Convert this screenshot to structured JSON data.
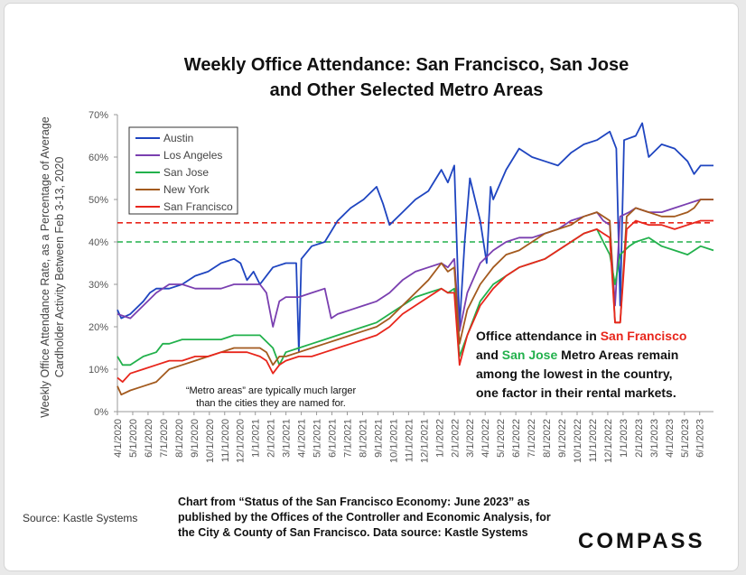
{
  "chart_data": {
    "type": "line",
    "title_line1": "Weekly Office Attendance: San Francisco, San Jose",
    "title_line2": "and Other Selected Metro Areas",
    "ylabel_line1": "Weekly Office Attendance  Rate, as a Percentage of Average",
    "ylabel_line2": "Cardholder Activity Between Feb 3-13, 2020",
    "ylim": [
      0,
      70
    ],
    "yticks": [
      "0%",
      "10%",
      "20%",
      "30%",
      "40%",
      "50%",
      "60%",
      "70%"
    ],
    "x_start": "4/1/2020",
    "x_end": "6/30/2023",
    "xticks": [
      "4/1/2020",
      "5/1/2020",
      "6/1/2020",
      "7/1/2020",
      "8/1/2020",
      "9/1/2020",
      "10/1/2020",
      "11/1/2020",
      "12/1/2020",
      "1/1/2021",
      "2/1/2021",
      "3/1/2021",
      "4/1/2021",
      "5/1/2021",
      "6/1/2021",
      "7/1/2021",
      "8/1/2021",
      "9/1/2021",
      "10/1/2021",
      "11/1/2021",
      "12/1/2021",
      "1/1/2022",
      "2/1/2022",
      "3/1/2022",
      "4/1/2022",
      "5/1/2022",
      "6/1/2022",
      "7/1/2022",
      "8/1/2022",
      "9/1/2022",
      "10/1/2022",
      "11/1/2022",
      "12/1/2022",
      "1/1/2023",
      "2/1/2023",
      "3/1/2023",
      "4/1/2023",
      "5/1/2023",
      "6/1/2023"
    ],
    "x_unit": "months since 4/1/2020",
    "series": [
      {
        "name": "Austin",
        "color": "#1f45c0",
        "points": [
          [
            0,
            24
          ],
          [
            0.3,
            22
          ],
          [
            1,
            23
          ],
          [
            2,
            26
          ],
          [
            2.5,
            28
          ],
          [
            3,
            29
          ],
          [
            4,
            29
          ],
          [
            5,
            30
          ],
          [
            6,
            32
          ],
          [
            7,
            33
          ],
          [
            8,
            35
          ],
          [
            9,
            36
          ],
          [
            9.5,
            35
          ],
          [
            10,
            31
          ],
          [
            10.5,
            33
          ],
          [
            11,
            30
          ],
          [
            11.5,
            32
          ],
          [
            12,
            34
          ],
          [
            13,
            35
          ],
          [
            13.8,
            35
          ],
          [
            14,
            14
          ],
          [
            14.2,
            36
          ],
          [
            15,
            39
          ],
          [
            16,
            40
          ],
          [
            17,
            45
          ],
          [
            18,
            48
          ],
          [
            19,
            50
          ],
          [
            20,
            53
          ],
          [
            20.5,
            49
          ],
          [
            21,
            44
          ],
          [
            22,
            47
          ],
          [
            23,
            50
          ],
          [
            24,
            52
          ],
          [
            25,
            57
          ],
          [
            25.5,
            54
          ],
          [
            26,
            58
          ],
          [
            26.4,
            20
          ],
          [
            26.8,
            40
          ],
          [
            27.2,
            55
          ],
          [
            28,
            45
          ],
          [
            28.5,
            35
          ],
          [
            28.8,
            53
          ],
          [
            29,
            50
          ],
          [
            30,
            57
          ],
          [
            31,
            62
          ],
          [
            32,
            60
          ],
          [
            33,
            59
          ],
          [
            34,
            58
          ],
          [
            35,
            61
          ],
          [
            36,
            63
          ],
          [
            37,
            64
          ],
          [
            38,
            66
          ],
          [
            38.5,
            62
          ],
          [
            38.8,
            25
          ],
          [
            39.1,
            64
          ],
          [
            40,
            65
          ],
          [
            40.5,
            68
          ],
          [
            41,
            60
          ],
          [
            42,
            63
          ],
          [
            43,
            62
          ],
          [
            44,
            59
          ],
          [
            44.5,
            56
          ],
          [
            45,
            58
          ],
          [
            46,
            58
          ]
        ]
      },
      {
        "name": "Los Angeles",
        "color": "#7a3fb0",
        "points": [
          [
            0,
            23
          ],
          [
            1,
            22
          ],
          [
            2,
            25
          ],
          [
            3,
            28
          ],
          [
            4,
            30
          ],
          [
            5,
            30
          ],
          [
            6,
            29
          ],
          [
            7,
            29
          ],
          [
            8,
            29
          ],
          [
            9,
            30
          ],
          [
            10,
            30
          ],
          [
            11,
            30
          ],
          [
            11.5,
            28
          ],
          [
            12,
            20
          ],
          [
            12.5,
            26
          ],
          [
            13,
            27
          ],
          [
            14,
            27
          ],
          [
            15,
            28
          ],
          [
            16,
            29
          ],
          [
            16.5,
            22
          ],
          [
            17,
            23
          ],
          [
            18,
            24
          ],
          [
            19,
            25
          ],
          [
            20,
            26
          ],
          [
            21,
            28
          ],
          [
            22,
            31
          ],
          [
            23,
            33
          ],
          [
            24,
            34
          ],
          [
            25,
            35
          ],
          [
            25.5,
            34
          ],
          [
            26,
            36
          ],
          [
            26.4,
            19
          ],
          [
            27,
            28
          ],
          [
            28,
            35
          ],
          [
            29,
            38
          ],
          [
            30,
            40
          ],
          [
            31,
            41
          ],
          [
            32,
            41
          ],
          [
            33,
            42
          ],
          [
            34,
            43
          ],
          [
            35,
            45
          ],
          [
            36,
            46
          ],
          [
            37,
            47
          ],
          [
            37.5,
            45
          ],
          [
            38,
            44
          ],
          [
            38.4,
            25
          ],
          [
            38.8,
            46
          ],
          [
            39.5,
            47
          ],
          [
            40,
            48
          ],
          [
            41,
            47
          ],
          [
            42,
            47
          ],
          [
            43,
            48
          ],
          [
            44,
            49
          ],
          [
            45,
            50
          ],
          [
            46,
            50
          ]
        ]
      },
      {
        "name": "San Jose",
        "color": "#22b14c",
        "points": [
          [
            0,
            13
          ],
          [
            0.4,
            11
          ],
          [
            1,
            11
          ],
          [
            2,
            13
          ],
          [
            3,
            14
          ],
          [
            3.5,
            16
          ],
          [
            4,
            16
          ],
          [
            5,
            17
          ],
          [
            6,
            17
          ],
          [
            7,
            17
          ],
          [
            8,
            17
          ],
          [
            9,
            18
          ],
          [
            10,
            18
          ],
          [
            11,
            18
          ],
          [
            12,
            15
          ],
          [
            12.5,
            11
          ],
          [
            13,
            14
          ],
          [
            14,
            15
          ],
          [
            15,
            16
          ],
          [
            16,
            17
          ],
          [
            17,
            18
          ],
          [
            18,
            19
          ],
          [
            19,
            20
          ],
          [
            20,
            21
          ],
          [
            21,
            23
          ],
          [
            22,
            25
          ],
          [
            23,
            27
          ],
          [
            24,
            28
          ],
          [
            25,
            29
          ],
          [
            25.5,
            28
          ],
          [
            26,
            29
          ],
          [
            26.4,
            13
          ],
          [
            27,
            18
          ],
          [
            28,
            26
          ],
          [
            29,
            30
          ],
          [
            30,
            32
          ],
          [
            31,
            34
          ],
          [
            32,
            35
          ],
          [
            33,
            36
          ],
          [
            34,
            38
          ],
          [
            35,
            40
          ],
          [
            36,
            42
          ],
          [
            37,
            43
          ],
          [
            37.5,
            40
          ],
          [
            38,
            37
          ],
          [
            38.4,
            30
          ],
          [
            38.8,
            37
          ],
          [
            39.5,
            39
          ],
          [
            40,
            40
          ],
          [
            41,
            41
          ],
          [
            42,
            39
          ],
          [
            43,
            38
          ],
          [
            44,
            37
          ],
          [
            45,
            39
          ],
          [
            46,
            38
          ]
        ]
      },
      {
        "name": "New York",
        "color": "#a35a1e",
        "points": [
          [
            0,
            6
          ],
          [
            0.3,
            4
          ],
          [
            1,
            5
          ],
          [
            2,
            6
          ],
          [
            3,
            7
          ],
          [
            4,
            10
          ],
          [
            5,
            11
          ],
          [
            6,
            12
          ],
          [
            7,
            13
          ],
          [
            8,
            14
          ],
          [
            9,
            15
          ],
          [
            10,
            15
          ],
          [
            11,
            15
          ],
          [
            11.5,
            14
          ],
          [
            12,
            11
          ],
          [
            12.5,
            13
          ],
          [
            13,
            13
          ],
          [
            14,
            14
          ],
          [
            15,
            15
          ],
          [
            16,
            16
          ],
          [
            17,
            17
          ],
          [
            18,
            18
          ],
          [
            19,
            19
          ],
          [
            20,
            20
          ],
          [
            21,
            22
          ],
          [
            22,
            25
          ],
          [
            23,
            28
          ],
          [
            24,
            31
          ],
          [
            25,
            35
          ],
          [
            25.5,
            33
          ],
          [
            26,
            34
          ],
          [
            26.4,
            16
          ],
          [
            27,
            24
          ],
          [
            28,
            30
          ],
          [
            29,
            34
          ],
          [
            30,
            37
          ],
          [
            31,
            38
          ],
          [
            32,
            40
          ],
          [
            33,
            42
          ],
          [
            34,
            43
          ],
          [
            35,
            44
          ],
          [
            36,
            46
          ],
          [
            37,
            47
          ],
          [
            37.5,
            46
          ],
          [
            38,
            45
          ],
          [
            38.4,
            21
          ],
          [
            38.8,
            21
          ],
          [
            39.3,
            46
          ],
          [
            40,
            48
          ],
          [
            41,
            47
          ],
          [
            42,
            46
          ],
          [
            43,
            46
          ],
          [
            44,
            47
          ],
          [
            44.5,
            48
          ],
          [
            45,
            50
          ],
          [
            46,
            50
          ]
        ]
      },
      {
        "name": "San Francisco",
        "color": "#e8261c",
        "points": [
          [
            0,
            8
          ],
          [
            0.4,
            7
          ],
          [
            1,
            9
          ],
          [
            2,
            10
          ],
          [
            3,
            11
          ],
          [
            4,
            12
          ],
          [
            5,
            12
          ],
          [
            6,
            13
          ],
          [
            7,
            13
          ],
          [
            8,
            14
          ],
          [
            9,
            14
          ],
          [
            10,
            14
          ],
          [
            11,
            13
          ],
          [
            11.5,
            12
          ],
          [
            12,
            9
          ],
          [
            12.5,
            11
          ],
          [
            13,
            12
          ],
          [
            14,
            13
          ],
          [
            15,
            13
          ],
          [
            16,
            14
          ],
          [
            17,
            15
          ],
          [
            18,
            16
          ],
          [
            19,
            17
          ],
          [
            20,
            18
          ],
          [
            21,
            20
          ],
          [
            22,
            23
          ],
          [
            23,
            25
          ],
          [
            24,
            27
          ],
          [
            25,
            29
          ],
          [
            25.5,
            28
          ],
          [
            26,
            28
          ],
          [
            26.4,
            11
          ],
          [
            27,
            18
          ],
          [
            28,
            25
          ],
          [
            29,
            29
          ],
          [
            30,
            32
          ],
          [
            31,
            34
          ],
          [
            32,
            35
          ],
          [
            33,
            36
          ],
          [
            34,
            38
          ],
          [
            35,
            40
          ],
          [
            36,
            42
          ],
          [
            37,
            43
          ],
          [
            37.5,
            42
          ],
          [
            38,
            41
          ],
          [
            38.4,
            21
          ],
          [
            38.8,
            21
          ],
          [
            39.3,
            43
          ],
          [
            40,
            45
          ],
          [
            41,
            44
          ],
          [
            42,
            44
          ],
          [
            43,
            43
          ],
          [
            44,
            44
          ],
          [
            45,
            45
          ],
          [
            46,
            45
          ]
        ]
      }
    ],
    "reference_lines": [
      {
        "value": 44.5,
        "color": "#e8261c",
        "style": "dashed"
      },
      {
        "value": 40,
        "color": "#22b14c",
        "style": "dashed"
      }
    ],
    "legend_position": "top-left",
    "annotation": {
      "line1": [
        "Office attendance in ",
        "San Francisco"
      ],
      "line2": [
        "and ",
        "San Jose",
        " Metro Areas remain"
      ],
      "line3": "among the lowest in the country,",
      "line4": "one factor in their rental markets.",
      "sf_color": "#e8261c",
      "sj_color": "#22b14c"
    },
    "note": {
      "line1": "“Metro areas” are typically much larger",
      "line2": "than the cities they are named for."
    }
  },
  "footer": {
    "source": "Source: Kastle Systems",
    "caption_line1": "Chart from “Status of the San Francisco Economy: June 2023” as",
    "caption_line2": "published by the Offices of the Controller and Economic Analysis, for",
    "caption_line3": "the City & County of San Francisco. Data source:  Kastle Systems",
    "logo": "COMPASS"
  }
}
